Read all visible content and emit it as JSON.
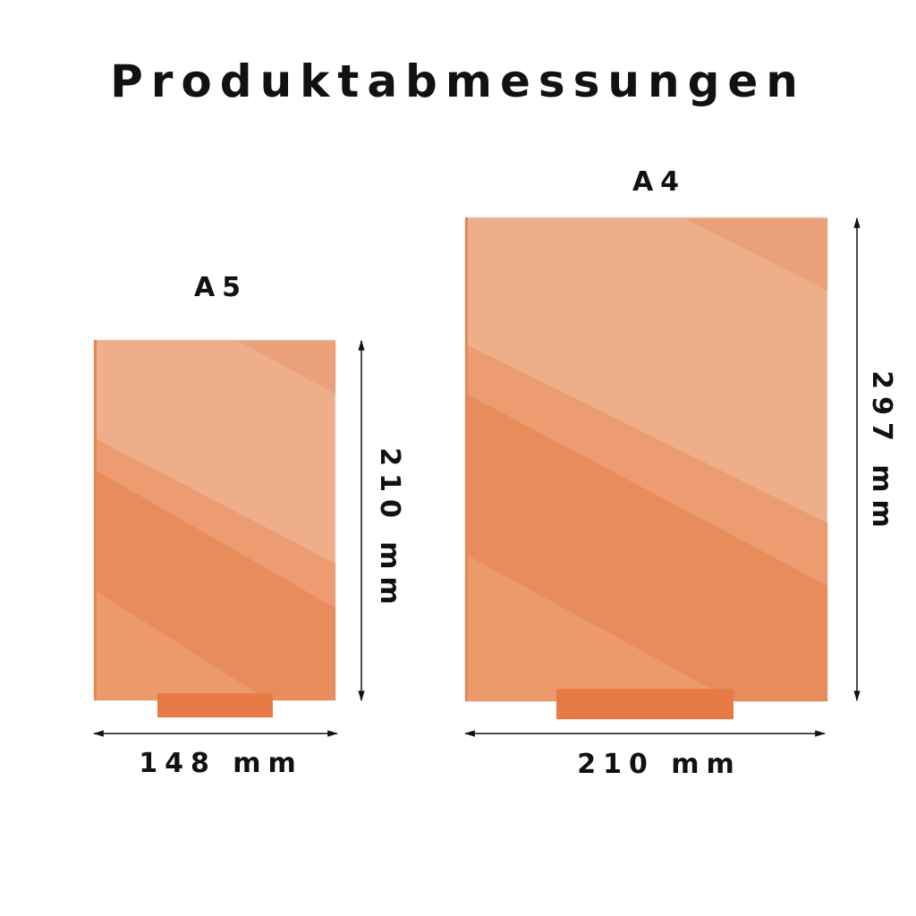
{
  "title": "Produktabmessungen",
  "panels": [
    {
      "name": "A5",
      "width_label": "148 mm",
      "height_label": "210 mm"
    },
    {
      "name": "A4",
      "width_label": "210 mm",
      "height_label": "297 mm"
    }
  ],
  "colors": {
    "panel_light": "#eeae8a",
    "panel_mid": "#ec9c70",
    "panel_dark": "#e98c5c",
    "stand": "#e87b45",
    "arrow": "#111111"
  }
}
